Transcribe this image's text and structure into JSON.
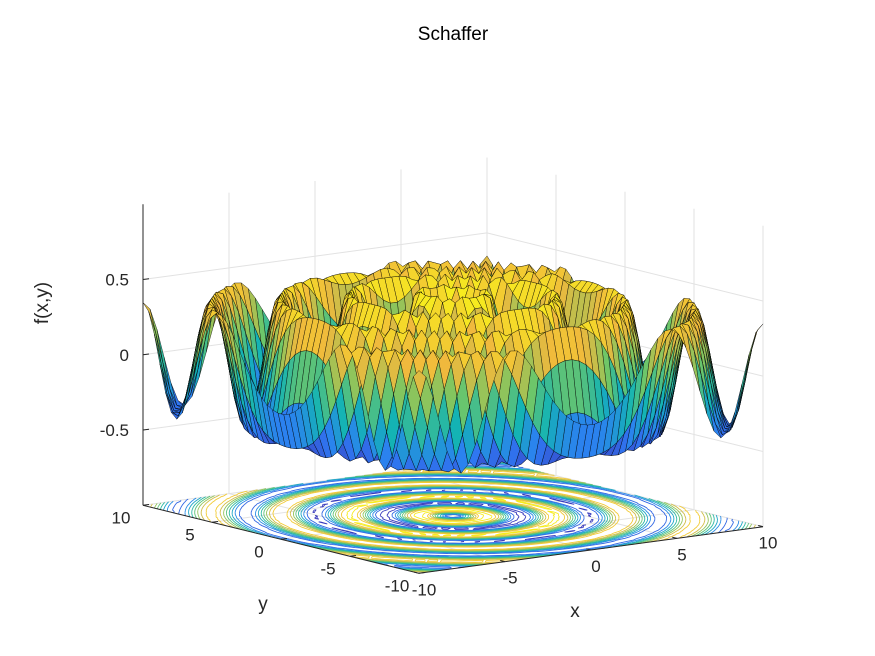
{
  "chart_data": {
    "type": "surface3d",
    "title": "Schaffer",
    "xlabel": "x",
    "ylabel": "y",
    "zlabel": "f(x,y)",
    "xlim": [
      -10,
      10
    ],
    "ylim": [
      -10,
      10
    ],
    "zlim": [
      -1,
      1
    ],
    "x_ticks": [
      -10,
      -5,
      0,
      5,
      10
    ],
    "y_ticks": [
      -10,
      -5,
      0,
      5,
      10
    ],
    "z_ticks": [
      -0.5,
      0,
      0.5
    ],
    "x_tick_labels": [
      "-10",
      "-5",
      "0",
      "5",
      "10"
    ],
    "y_tick_labels": [
      "-10",
      "-5",
      "0",
      "5",
      "10"
    ],
    "z_tick_labels": [
      "-0.5",
      "0",
      "0.5"
    ],
    "function": "f(x,y) = (sin^2(sqrt(x^2+y^2)) - 0.5) / (1 + 0.001(x^2+y^2))^2",
    "grid": true,
    "colormap": [
      "#3e26a8",
      "#2e7cf6",
      "#13b3b5",
      "#74c764",
      "#f0b93d",
      "#f9fb15"
    ],
    "contour_levels": 10,
    "grid_points": 50
  }
}
